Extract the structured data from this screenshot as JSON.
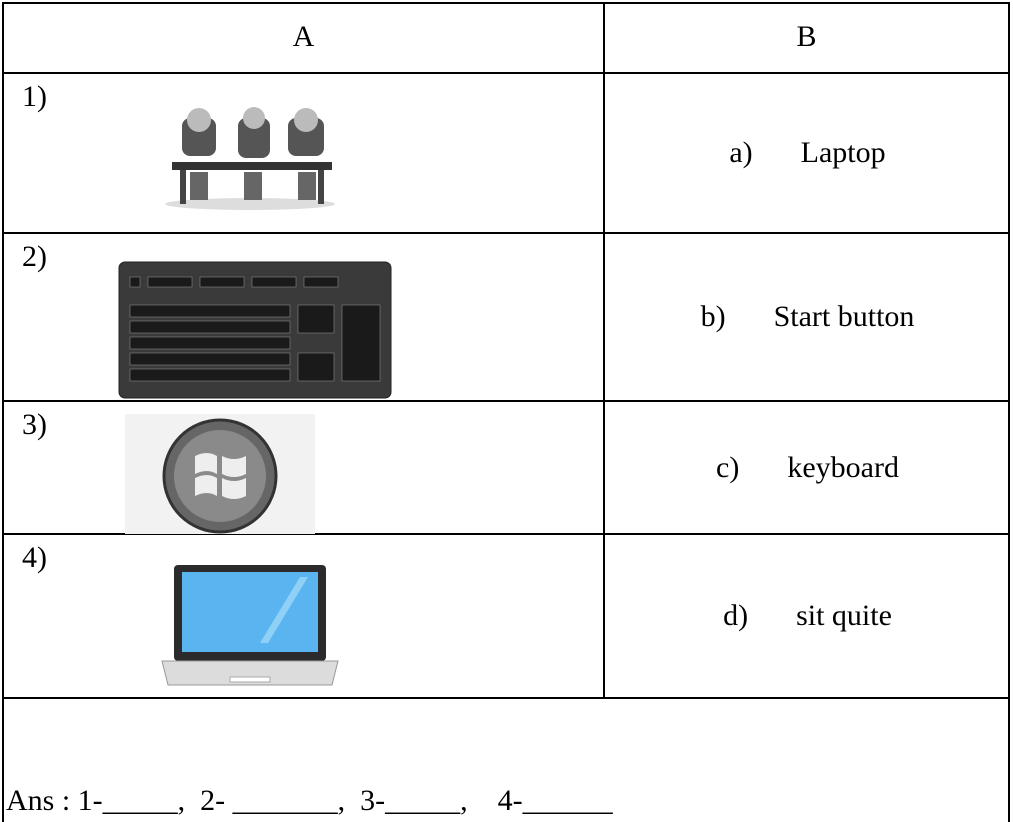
{
  "table": {
    "header": [
      "A",
      "B"
    ],
    "rows": [
      {
        "number": "1)",
        "letter": "a)",
        "text": "Laptop"
      },
      {
        "number": "2)",
        "letter": "b)",
        "text": "Start button"
      },
      {
        "number": "3)",
        "letter": "c)",
        "text": "keyboard"
      },
      {
        "number": "4)",
        "letter": "d)",
        "text": "sit quite"
      }
    ]
  },
  "answer": "Ans : 1-_____,  2- _______,  3-_____,    4-______"
}
